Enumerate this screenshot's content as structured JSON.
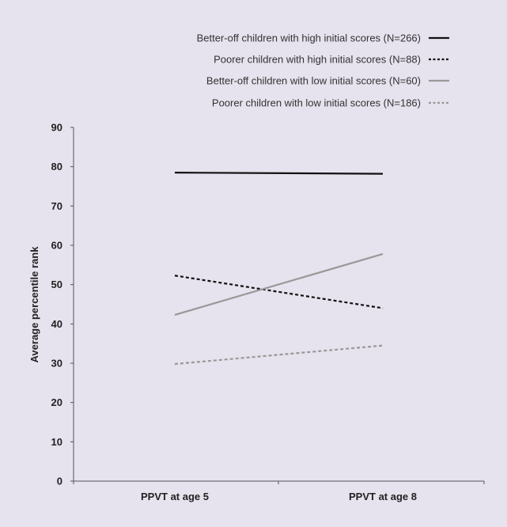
{
  "chart_data": {
    "type": "line",
    "categories": [
      "PPVT at age 5",
      "PPVT at age 8"
    ],
    "ylabel": "Average percentile rank",
    "xlabel": "",
    "ylim": [
      0,
      90
    ],
    "yticks": [
      0,
      10,
      20,
      30,
      40,
      50,
      60,
      70,
      80,
      90
    ],
    "legend_position": "top-right",
    "grid": false,
    "series": [
      {
        "name": "Better-off children with high initial scores (N=266)",
        "values": [
          78.5,
          78.2
        ],
        "color": "#111111",
        "style": "solid"
      },
      {
        "name": "Poorer children with high initial scores (N=88)",
        "values": [
          52.3,
          44.0
        ],
        "color": "#111111",
        "style": "dotted"
      },
      {
        "name": "Better-off children with low initial scores (N=60)",
        "values": [
          42.3,
          57.8
        ],
        "color": "#999999",
        "style": "solid"
      },
      {
        "name": "Poorer children with low initial scores (N=186)",
        "values": [
          29.8,
          34.5
        ],
        "color": "#999999",
        "style": "dotted"
      }
    ]
  }
}
